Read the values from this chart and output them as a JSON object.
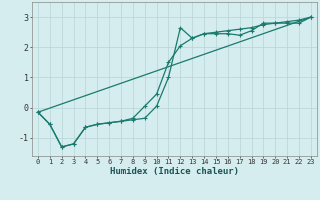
{
  "xlabel": "Humidex (Indice chaleur)",
  "background_color": "#d5edee",
  "grid_color": "#b8d4d4",
  "line_color": "#1a7a6e",
  "xlim": [
    -0.5,
    23.5
  ],
  "ylim": [
    -1.6,
    3.5
  ],
  "yticks": [
    -1,
    0,
    1,
    2,
    3
  ],
  "xticks": [
    0,
    1,
    2,
    3,
    4,
    5,
    6,
    7,
    8,
    9,
    10,
    11,
    12,
    13,
    14,
    15,
    16,
    17,
    18,
    19,
    20,
    21,
    22,
    23
  ],
  "series1_x": [
    0,
    1,
    2,
    3,
    4,
    5,
    6,
    7,
    8,
    9,
    10,
    11,
    12,
    13,
    14,
    15,
    16,
    17,
    18,
    19,
    20,
    21,
    22,
    23
  ],
  "series1_y": [
    -0.15,
    -0.55,
    -1.3,
    -1.2,
    -0.65,
    -0.55,
    -0.5,
    -0.45,
    -0.4,
    -0.35,
    0.05,
    1.0,
    2.65,
    2.3,
    2.45,
    2.45,
    2.45,
    2.4,
    2.55,
    2.8,
    2.8,
    2.8,
    2.8,
    3.0
  ],
  "series2_x": [
    0,
    1,
    2,
    3,
    4,
    5,
    6,
    7,
    8,
    9,
    10,
    11,
    12,
    13,
    14,
    15,
    16,
    17,
    18,
    19,
    20,
    21,
    22,
    23
  ],
  "series2_y": [
    -0.15,
    -0.55,
    -1.3,
    -1.2,
    -0.65,
    -0.55,
    -0.5,
    -0.45,
    -0.35,
    0.05,
    0.45,
    1.5,
    2.05,
    2.3,
    2.45,
    2.5,
    2.55,
    2.6,
    2.65,
    2.75,
    2.8,
    2.85,
    2.9,
    3.0
  ],
  "line_x": [
    0,
    23
  ],
  "line_y": [
    -0.15,
    3.0
  ],
  "marker": "+",
  "markersize": 3,
  "linewidth": 0.9,
  "tick_fontsize": 5,
  "xlabel_fontsize": 6.5
}
